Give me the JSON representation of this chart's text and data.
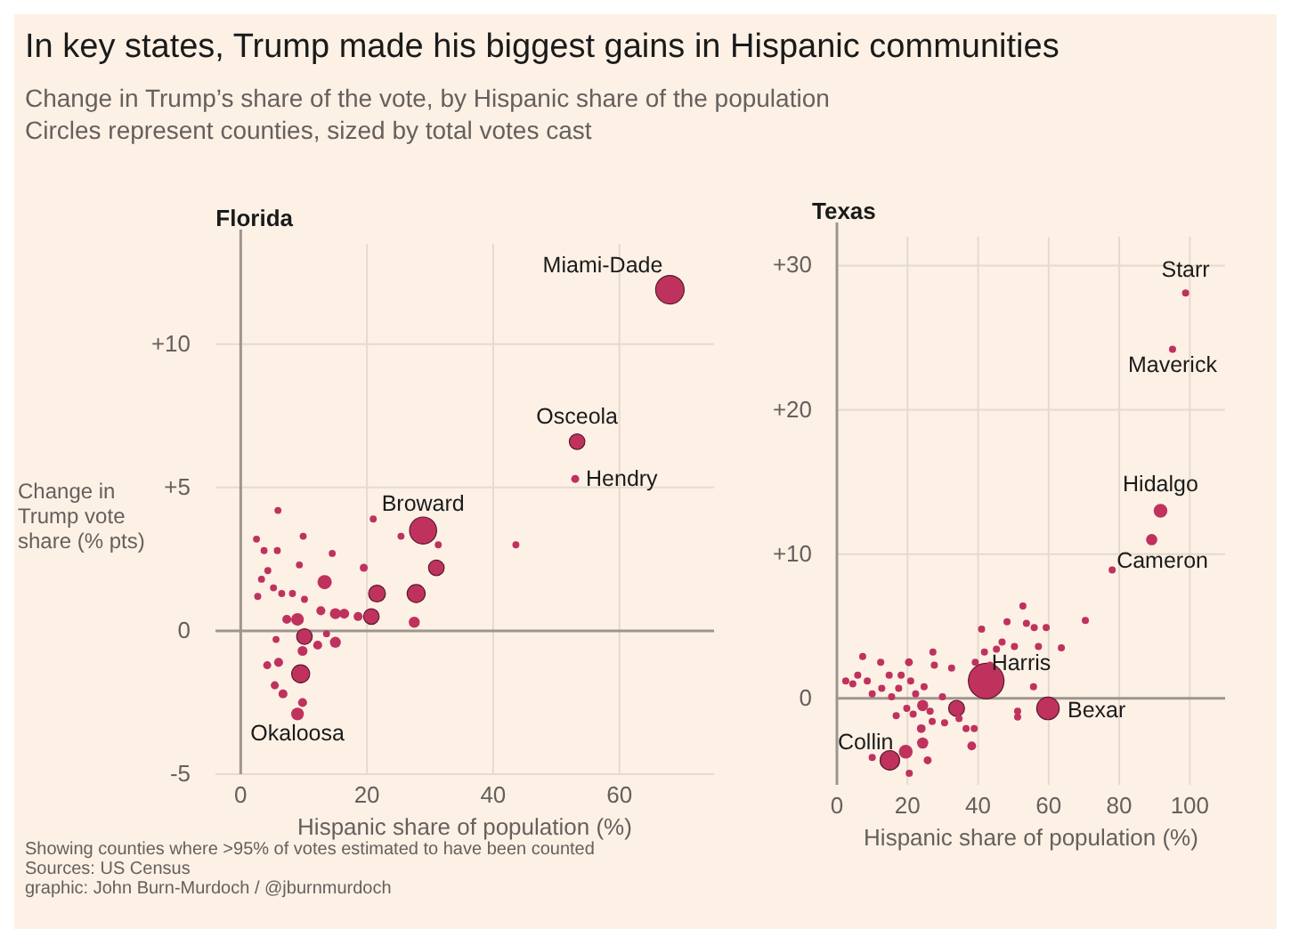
{
  "chart_data": [
    {
      "type": "other",
      "title": "In key states, Trump made his biggest gains in Hispanic communities",
      "subtitle": "Change in Trump’s share of the vote, by Hispanic share of the population\nCircles represent counties, sized by total votes cast",
      "annotations": [
        "Showing counties where >95% of votes estimated to have been counted",
        "Sources: US Census",
        "graphic: John Burn-Murdoch / @jburnmurdoch"
      ]
    },
    {
      "type": "bubble",
      "title": "Florida",
      "xlabel": "Hispanic share of population (%)",
      "ylabel": "Change in Trump vote share (% pts)",
      "xlim": [
        -4,
        75
      ],
      "ylim": [
        -5,
        13.5
      ],
      "xticks": [
        0,
        20,
        40,
        60
      ],
      "yticks": [
        {
          "value": -5,
          "label": "-5"
        },
        0,
        {
          "value": 5,
          "label": "+5"
        },
        {
          "value": 10,
          "label": "+10"
        }
      ],
      "grid": true,
      "series": [
        {
          "color": "#c0325e",
          "x": [
            68,
            53.3,
            53,
            28.9,
            9,
            43.6,
            5.9,
            2.5,
            9.9,
            3.7,
            5.8,
            14.5,
            21,
            25.4,
            19.5,
            9.3,
            4.3,
            3.3,
            5.2,
            6.5,
            2.7,
            8.2,
            10.1,
            13.3,
            21.6,
            27.8,
            12.7,
            15,
            16.4,
            18.6,
            20.7,
            7.3,
            9,
            27.5,
            10.1,
            5.6,
            12.2,
            13.6,
            15,
            9.8,
            4.2,
            6,
            9.5,
            5.4,
            6.7,
            9.8,
            31.3,
            31
          ],
          "values": [
            11.9,
            6.6,
            5.3,
            3.5,
            -2.9,
            3.0,
            4.2,
            3.2,
            3.3,
            2.8,
            2.8,
            2.7,
            3.9,
            3.3,
            2.2,
            2.3,
            2.1,
            1.8,
            1.5,
            1.3,
            1.2,
            1.3,
            1.1,
            1.7,
            1.3,
            1.3,
            0.7,
            0.6,
            0.6,
            0.5,
            0.5,
            0.4,
            0.4,
            0.3,
            -0.2,
            -0.3,
            -0.5,
            -0.1,
            -0.4,
            -0.7,
            -1.2,
            -1.1,
            -1.5,
            -1.9,
            -2.2,
            -2.5,
            3.0,
            2.2
          ],
          "sizes": [
            1,
            0.3,
            0.08,
            0.9,
            0.2,
            0.06,
            0.06,
            0.06,
            0.06,
            0.06,
            0.06,
            0.06,
            0.06,
            0.06,
            0.08,
            0.06,
            0.06,
            0.06,
            0.06,
            0.06,
            0.06,
            0.06,
            0.06,
            0.25,
            0.35,
            0.4,
            0.1,
            0.15,
            0.12,
            0.1,
            0.3,
            0.1,
            0.2,
            0.15,
            0.3,
            0.06,
            0.1,
            0.06,
            0.15,
            0.12,
            0.08,
            0.1,
            0.4,
            0.08,
            0.1,
            0.1,
            0.06,
            0.3
          ]
        }
      ],
      "annotations": [
        {
          "text": "Miami-Dade",
          "x": 68,
          "y": 11.9
        },
        {
          "text": "Osceola",
          "x": 53.3,
          "y": 6.6
        },
        {
          "text": "Hendry",
          "x": 53,
          "y": 5.3
        },
        {
          "text": "Broward",
          "x": 28.9,
          "y": 3.5
        },
        {
          "text": "Okaloosa",
          "x": 9,
          "y": -2.9
        }
      ]
    },
    {
      "type": "bubble",
      "title": "Texas",
      "xlabel": "Hispanic share of population (%)",
      "xlim": [
        0,
        110
      ],
      "ylim": [
        -6,
        32
      ],
      "xticks": [
        0,
        20,
        40,
        60,
        80,
        100
      ],
      "yticks": [
        0,
        {
          "value": 10,
          "label": "+10"
        },
        {
          "value": 20,
          "label": "+20"
        },
        {
          "value": 30,
          "label": "+30"
        }
      ],
      "grid": true,
      "series": [
        {
          "color": "#c0325e",
          "x": [
            98.8,
            95.1,
            91.7,
            89.2,
            78,
            42.3,
            59.8,
            15,
            52.7,
            48.2,
            41,
            53.7,
            55.9,
            59.3,
            70.4,
            63.6,
            57.1,
            46.8,
            45.2,
            50.3,
            41.8,
            39.2,
            43.4,
            55.7,
            51.2,
            51.2,
            33.9,
            29.9,
            32.5,
            27.2,
            27.6,
            20.4,
            18.2,
            7.3,
            12.4,
            14.8,
            20.9,
            24.7,
            4.5,
            10,
            15.5,
            19.8,
            24.3,
            27,
            23.9,
            24.3,
            19.5,
            25.7,
            10,
            20.5,
            34.6,
            36.6,
            38.9,
            38.2,
            30.5,
            5.9,
            2.5,
            8.6,
            12.7,
            17.5,
            22.3,
            21.6,
            16.8,
            26.4
          ],
          "values": [
            28.1,
            24.2,
            13.0,
            11.0,
            8.9,
            1.2,
            -0.7,
            -4.3,
            6.4,
            5.3,
            4.8,
            5.2,
            4.9,
            4.9,
            5.4,
            3.5,
            3.6,
            3.9,
            3.4,
            3.6,
            3.2,
            2.5,
            2.3,
            0.8,
            -0.9,
            -1.3,
            -0.7,
            0.1,
            2.1,
            3.2,
            2.3,
            2.5,
            1.6,
            2.9,
            2.5,
            1.6,
            1.2,
            0.8,
            1.0,
            0.3,
            0.1,
            -0.7,
            -0.5,
            -1.6,
            -2.1,
            -3.1,
            -3.7,
            -4.3,
            -4.1,
            -5.2,
            -1.4,
            -2.1,
            -2.1,
            -3.3,
            -1.7,
            1.6,
            1.2,
            1.2,
            0.7,
            0.7,
            0.3,
            -1.1,
            -1.2,
            -0.9
          ],
          "sizes": [
            0.04,
            0.04,
            0.15,
            0.1,
            0.04,
            1,
            0.4,
            0.3,
            0.04,
            0.04,
            0.04,
            0.04,
            0.04,
            0.04,
            0.04,
            0.04,
            0.04,
            0.04,
            0.04,
            0.04,
            0.04,
            0.04,
            0.04,
            0.04,
            0.04,
            0.04,
            0.2,
            0.04,
            0.04,
            0.04,
            0.04,
            0.05,
            0.04,
            0.04,
            0.04,
            0.04,
            0.04,
            0.04,
            0.04,
            0.04,
            0.04,
            0.04,
            0.1,
            0.04,
            0.06,
            0.1,
            0.15,
            0.05,
            0.04,
            0.04,
            0.04,
            0.04,
            0.04,
            0.06,
            0.04,
            0.04,
            0.04,
            0.04,
            0.04,
            0.04,
            0.04,
            0.04,
            0.04,
            0.04
          ]
        }
      ],
      "annotations": [
        {
          "text": "Starr",
          "x": 98.8,
          "y": 28.1
        },
        {
          "text": "Maverick",
          "x": 95.1,
          "y": 24.2
        },
        {
          "text": "Hidalgo",
          "x": 91.7,
          "y": 13.0
        },
        {
          "text": "Cameron",
          "x": 89.2,
          "y": 11.0
        },
        {
          "text": "Harris",
          "x": 42.3,
          "y": 1.2
        },
        {
          "text": "Bexar",
          "x": 59.8,
          "y": -0.7
        },
        {
          "text": "Collin",
          "x": 15,
          "y": -4.3
        }
      ]
    }
  ]
}
